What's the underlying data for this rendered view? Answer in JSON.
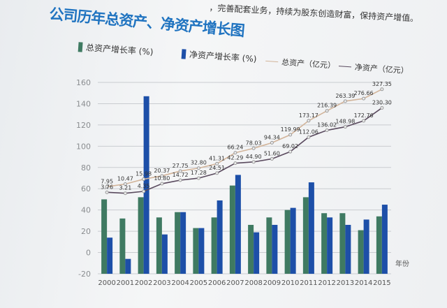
{
  "header": {
    "top_text": "，完善配套业务，持续为股东创造财富，保持资产增值。",
    "title": "公司历年总资产、净资产增长图"
  },
  "colors": {
    "total_growth": "#3f7a62",
    "net_growth": "#1d4fa8",
    "total_assets_line": "#d2b49a",
    "net_assets_line": "#5a4a5e"
  },
  "chart_data": {
    "type": "bar+line",
    "title": "公司历年总资产、净资产增长图",
    "xlabel": "年份",
    "ylabel": "",
    "ylim": [
      -20,
      160
    ],
    "yticks": [
      -20,
      0,
      20,
      40,
      60,
      80,
      100,
      120,
      140,
      160
    ],
    "grid": true,
    "legend_position": "top",
    "categories": [
      "2000",
      "2001",
      "2002",
      "2003",
      "2004",
      "2005",
      "2006",
      "2007",
      "2008",
      "2009",
      "2010",
      "2011",
      "2012",
      "2013",
      "2014",
      "2015"
    ],
    "bar_series": [
      {
        "name": "总资产增长率 (%)",
        "values": [
          50,
          32,
          52,
          33,
          38,
          23,
          33,
          63,
          26,
          33,
          40,
          52,
          37,
          37,
          21,
          34
        ]
      },
      {
        "name": "净资产增长率 (%)",
        "values": [
          14,
          -6,
          147,
          17,
          38,
          23,
          49,
          73,
          19,
          26,
          42,
          66,
          33,
          26,
          31,
          45
        ]
      }
    ],
    "line_series": [
      {
        "name": "总资产（亿元）",
        "values": [
          7.95,
          10.47,
          15.98,
          20.37,
          27.75,
          32.8,
          41.31,
          66.24,
          78.03,
          94.34,
          119.99,
          173.17,
          216.39,
          263.39,
          276.66,
          327.35
        ],
        "labels": [
          "7.95",
          "10.47",
          "15.98",
          "20.37",
          "27.75",
          "32.80",
          "41.31",
          "66.24",
          "78.03",
          "94.34",
          "119.99",
          "173.17",
          "216.39",
          "263.39",
          "276.66",
          "327.35"
        ]
      },
      {
        "name": "净资产（亿元）",
        "values": [
          3.76,
          3.21,
          4.35,
          10.8,
          14.72,
          17.28,
          24.51,
          42.29,
          44.9,
          51.6,
          69.02,
          112.06,
          136.02,
          148.98,
          172.76,
          230.3
        ],
        "labels": [
          "3.76",
          "3.21",
          "4.35",
          "10.80",
          "14.72",
          "17.28",
          "24.51",
          "42.29",
          "44.90",
          "51.60",
          "69.02",
          "112.06",
          "136.02",
          "148.98",
          "172.76",
          "230.30"
        ]
      }
    ]
  }
}
